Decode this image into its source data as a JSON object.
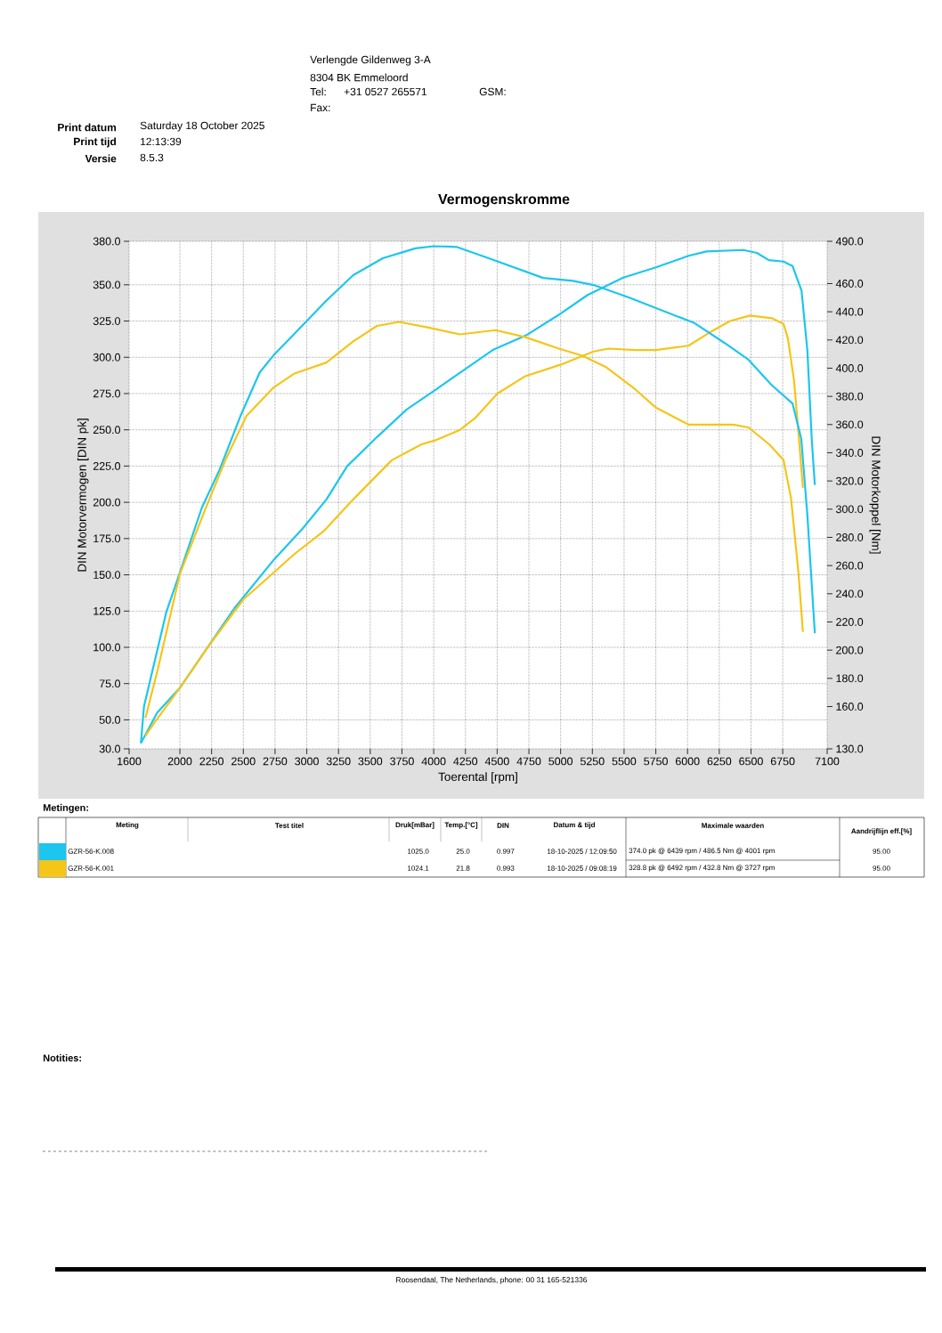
{
  "chart_data": {
    "type": "line",
    "title": "Vermogenskromme",
    "xlabel": "Toerental [rpm]",
    "ylabel": "DIN Motorvermogen [DIN pk]",
    "y2label": "DIN Motorkoppel [Nm]",
    "xlim": [
      1600,
      7100
    ],
    "xticks": [
      1600,
      2000,
      2250,
      2500,
      2750,
      3000,
      3250,
      3500,
      3750,
      4000,
      4250,
      4500,
      4750,
      5000,
      5250,
      5500,
      5750,
      6000,
      6250,
      6500,
      6750,
      7100
    ],
    "ylim": [
      30,
      380
    ],
    "yticks": [
      {
        "value": 30,
        "label": "30.0"
      },
      {
        "value": 50,
        "label": "50.0"
      },
      {
        "value": 75,
        "label": "75.0"
      },
      {
        "value": 100,
        "label": "100.0"
      },
      {
        "value": 125,
        "label": "125.0"
      },
      {
        "value": 150,
        "label": "150.0"
      },
      {
        "value": 175,
        "label": "175.0"
      },
      {
        "value": 200,
        "label": "200.0"
      },
      {
        "value": 225,
        "label": "225.0"
      },
      {
        "value": 250,
        "label": "250.0"
      },
      {
        "value": 275,
        "label": "275.0"
      },
      {
        "value": 300,
        "label": "300.0"
      },
      {
        "value": 325,
        "label": "325.0"
      },
      {
        "value": 350,
        "label": "350.0"
      },
      {
        "value": 380,
        "label": "380.0"
      }
    ],
    "y2lim": [
      130,
      490
    ],
    "y2ticks": [
      {
        "value": 130,
        "label": "130.0"
      },
      {
        "value": 160,
        "label": "160.0"
      },
      {
        "value": 180,
        "label": "180.0"
      },
      {
        "value": 200,
        "label": "200.0"
      },
      {
        "value": 220,
        "label": "220.0"
      },
      {
        "value": 240,
        "label": "240.0"
      },
      {
        "value": 260,
        "label": "260.0"
      },
      {
        "value": 280,
        "label": "280.0"
      },
      {
        "value": 300,
        "label": "300.0"
      },
      {
        "value": 320,
        "label": "320.0"
      },
      {
        "value": 340,
        "label": "340.0"
      },
      {
        "value": 360,
        "label": "360.0"
      },
      {
        "value": 380,
        "label": "380.0"
      },
      {
        "value": 400,
        "label": "400.0"
      },
      {
        "value": 420,
        "label": "420.0"
      },
      {
        "value": 440,
        "label": "440.0"
      },
      {
        "value": 460,
        "label": "460.0"
      },
      {
        "value": 490,
        "label": "490.0"
      }
    ],
    "grid": true,
    "line_style": "solid",
    "series": [
      {
        "color": "#1cc6ee",
        "axis": "y2",
        "x": [
          1693,
          1717,
          1893,
          2000,
          2173,
          2313,
          2477,
          2629,
          2746,
          2898,
          3155,
          3366,
          3599,
          3857,
          4001,
          4180,
          4463,
          4862,
          5095,
          5260,
          5541,
          5798,
          6055,
          6290,
          6480,
          6663,
          6827,
          6896,
          6944,
          7003
        ],
        "values": [
          134,
          160,
          227,
          255,
          301,
          328,
          366,
          397,
          410,
          424,
          448,
          466,
          478,
          485,
          486.5,
          486,
          477,
          464,
          462,
          459,
          450,
          441,
          432,
          418,
          406,
          388,
          375,
          350,
          296,
          212
        ]
      },
      {
        "color": "#1cc6ee",
        "x": [
          1693,
          1822,
          2000,
          2219,
          2430,
          2746,
          2968,
          3155,
          3319,
          3553,
          3787,
          4021,
          4184,
          4465,
          4725,
          4980,
          5213,
          5494,
          5751,
          6008,
          6149,
          6439,
          6546,
          6640,
          6756,
          6827,
          6898,
          6944,
          6979,
          7003
        ],
        "values": [
          34,
          55,
          72,
          100,
          127,
          161,
          182,
          202,
          225,
          245,
          264,
          278,
          288,
          305,
          315,
          329,
          343,
          355,
          362,
          370,
          373,
          374.0,
          372,
          367,
          366,
          363,
          346,
          305,
          243,
          212
        ]
      },
      {
        "color": "#f5c518",
        "axis": "y2",
        "x": [
          1729,
          1822,
          2000,
          2196,
          2360,
          2524,
          2734,
          2898,
          3155,
          3366,
          3553,
          3727,
          3951,
          4207,
          4488,
          4722,
          4980,
          5167,
          5354,
          5588,
          5751,
          6008,
          6359,
          6480,
          6643,
          6756,
          6815,
          6874,
          6909
        ],
        "values": [
          152,
          185,
          254,
          299,
          335,
          366,
          386,
          396,
          404,
          419,
          430,
          432.8,
          429,
          424,
          427,
          422,
          414,
          409,
          401,
          385,
          372,
          360,
          360,
          358,
          346,
          335,
          308,
          255,
          213
        ]
      },
      {
        "color": "#f5c518",
        "x": [
          1729,
          1799,
          2000,
          2219,
          2500,
          2746,
          2898,
          3132,
          3366,
          3669,
          3904,
          4021,
          4208,
          4325,
          4502,
          4722,
          5003,
          5260,
          5377,
          5588,
          5751,
          6008,
          6172,
          6335,
          6492,
          6663,
          6756,
          6791,
          6839,
          6874,
          6909
        ],
        "values": [
          39,
          48,
          72,
          100,
          133,
          152,
          164,
          180,
          202,
          229,
          240,
          243,
          250,
          258,
          275,
          287,
          295,
          304,
          306,
          305,
          305,
          308,
          317,
          325,
          328.8,
          327,
          323,
          313,
          284,
          248,
          210
        ]
      }
    ],
    "annotations": [
      "Verlengde Gildenweg 3-A",
      "8304 BK Emmeloord",
      "Tel:",
      "+31 0527 265571",
      "Fax:",
      "GSM:",
      "Print datum",
      "Saturday 18 October 2025",
      "Print tijd",
      "12:13:39",
      "Versie",
      "8.5.3",
      "Metingen:",
      "Meting",
      "Test titel",
      "Druk[mBar]",
      "Temp.[°C]",
      "DIN",
      "Datum & tijd",
      "Maximale waarden",
      "Aandrijflijn eff.[%]",
      "GZR-56-K.008",
      "1025.0",
      "25.0",
      "0.997",
      "18-10-2025 / 12:09:50",
      "374.0 pk @ 6439 rpm / 486.5 Nm @ 4001 rpm",
      "95.00",
      "GZR-56-K.001",
      "1024.1",
      "21.8",
      "0.993",
      "18-10-2025 / 09:08:19",
      "328.8 pk @ 6492 rpm / 432.8 Nm @ 3727 rpm",
      "95.00",
      "Notities:",
      "Roosendaal, The Netherlands, phone: 00 31 165-521336"
    ]
  }
}
